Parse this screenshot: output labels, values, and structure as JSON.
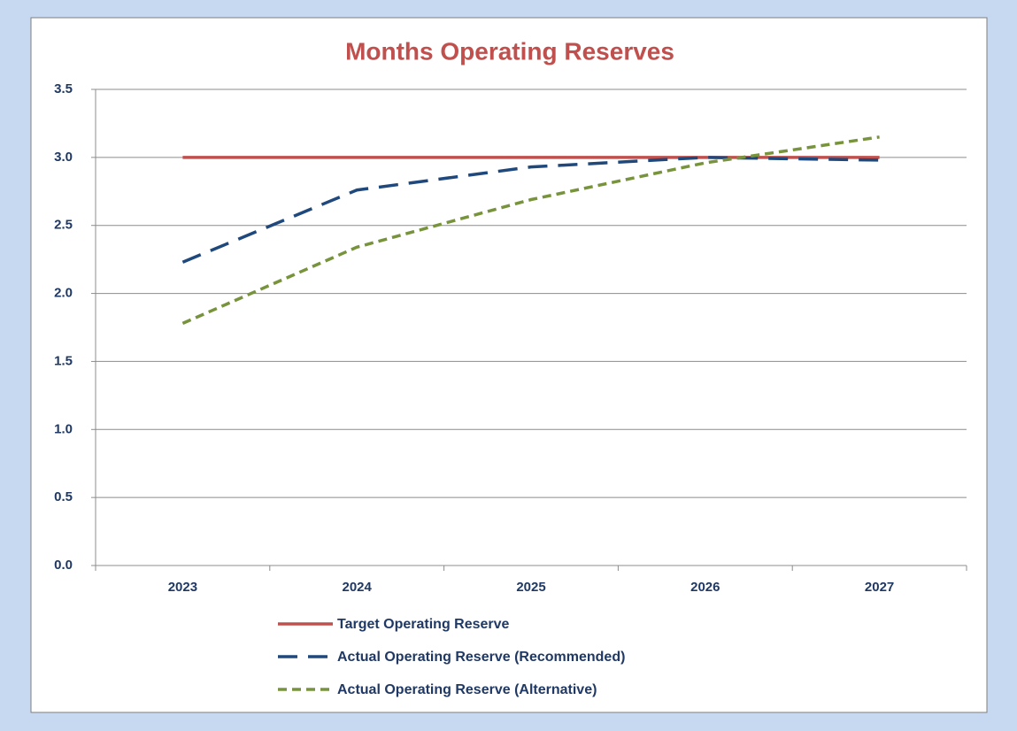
{
  "chart_data": {
    "type": "line",
    "title": "Months Operating Reserves",
    "categories": [
      "2023",
      "2024",
      "2025",
      "2026",
      "2027"
    ],
    "series": [
      {
        "name": "Target Operating Reserve",
        "color": "#c0504d",
        "dash": "solid",
        "values": [
          3.0,
          3.0,
          3.0,
          3.0,
          3.0
        ]
      },
      {
        "name": "Actual Operating Reserve (Recommended)",
        "color": "#1f497d",
        "dash": "long",
        "values": [
          2.23,
          2.76,
          2.93,
          3.0,
          2.98
        ]
      },
      {
        "name": "Actual Operating Reserve (Alternative)",
        "color": "#77933c",
        "dash": "short",
        "values": [
          1.78,
          2.34,
          2.69,
          2.96,
          3.15
        ]
      }
    ],
    "ylim": [
      0,
      3.5
    ],
    "yticks": [
      {
        "value": 0,
        "label": "0.0"
      },
      0.5,
      {
        "value": 1,
        "label": "1.0"
      },
      1.5,
      {
        "value": 2,
        "label": "2.0"
      },
      2.5,
      {
        "value": 3,
        "label": "3.0"
      },
      3.5
    ],
    "grid": true,
    "legend": "bottom"
  }
}
